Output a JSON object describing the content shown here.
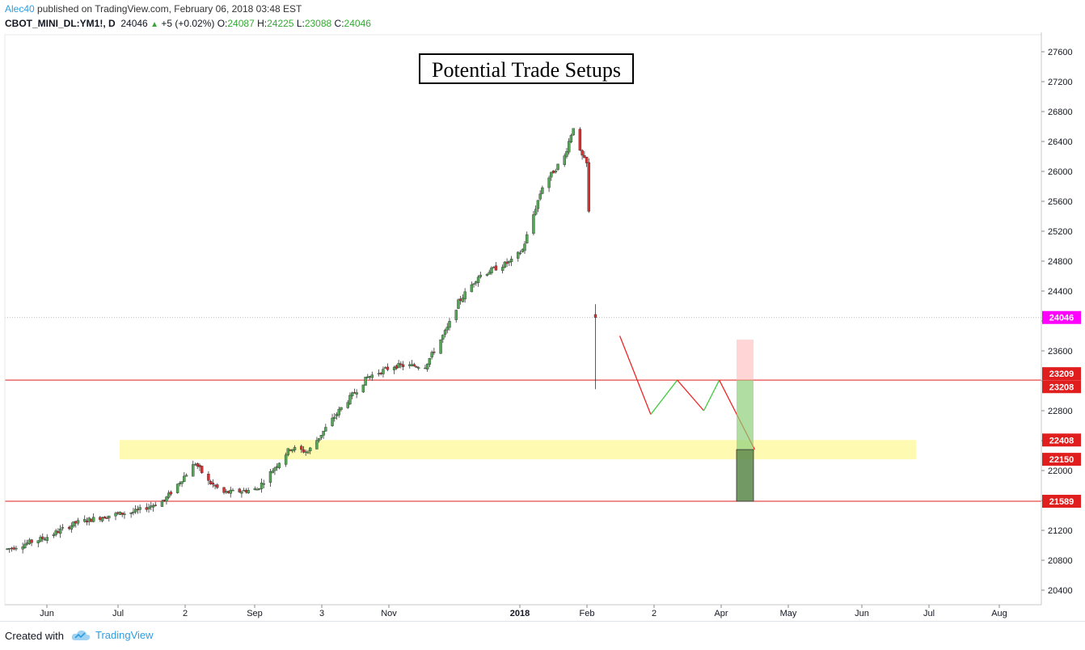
{
  "header": {
    "author": "Alec40",
    "published": "published on TradingView.com, February 06, 2018 03:48 EST",
    "symbol": "CBOT_MINI_DL:YM1!, D",
    "last": "24046",
    "change": "+5 (+0.02%)",
    "o_label": "O:",
    "o": "24087",
    "h_label": "H:",
    "h": "24225",
    "l_label": "L:",
    "l": "23088",
    "c_label": "C:",
    "c": "24046"
  },
  "footer": {
    "created_with": "Created with",
    "brand": "TradingView",
    "logo_icon": "tradingview-cloud-icon"
  },
  "colors": {
    "up": "#53a653",
    "down": "#d83030",
    "support": "#e01e1e",
    "zone": "#fffaa8",
    "projection_down": "#ef2525",
    "projection_up": "#3fcb3f",
    "price_tag": "#ff00ff"
  },
  "chart_data": {
    "type": "candlestick",
    "title": "Potential Trade Setups",
    "timeframe": "D",
    "y_ticks": [
      20400,
      20800,
      21200,
      21600,
      22000,
      22400,
      22800,
      23200,
      23600,
      24000,
      24400,
      24800,
      25200,
      25600,
      26000,
      26400,
      26800,
      27200,
      27600
    ],
    "y_tick_labels": [
      "20400",
      "20800",
      "21200",
      "",
      "22000",
      "",
      "22800",
      "",
      "23600",
      "",
      "24400",
      "24800",
      "25200",
      "25600",
      "26000",
      "26400",
      "26800",
      "27200",
      "27600"
    ],
    "ylim": [
      20250,
      27700
    ],
    "x_ticks": [
      "Jun",
      "Jul",
      "2",
      "Sep",
      "3",
      "Nov",
      "2018",
      "Feb",
      "2",
      "Apr",
      "May",
      "Jun",
      "Jul",
      "Aug"
    ],
    "price_labels": [
      {
        "value": 24046,
        "text": "24046",
        "kind": "last"
      },
      {
        "value": 23209,
        "text": "23209",
        "kind": "level"
      },
      {
        "value": 23208,
        "text": "23208",
        "kind": "level"
      },
      {
        "value": 22408,
        "text": "22408",
        "kind": "level"
      },
      {
        "value": 22150,
        "text": "22150",
        "kind": "level"
      },
      {
        "value": 21589,
        "text": "21589",
        "kind": "level"
      }
    ],
    "horizontal_lines": [
      23209,
      21589
    ],
    "zone": {
      "top": 22408,
      "bottom": 22150
    },
    "path_anchors": [
      {
        "d": "2017-05-15",
        "v": 20950
      },
      {
        "d": "2017-06-01",
        "v": 21100
      },
      {
        "d": "2017-06-15",
        "v": 21300
      },
      {
        "d": "2017-06-30",
        "v": 21400
      },
      {
        "d": "2017-07-12",
        "v": 21450
      },
      {
        "d": "2017-07-25",
        "v": 21600
      },
      {
        "d": "2017-08-08",
        "v": 22100
      },
      {
        "d": "2017-08-14",
        "v": 21850
      },
      {
        "d": "2017-08-21",
        "v": 21700
      },
      {
        "d": "2017-09-05",
        "v": 21750
      },
      {
        "d": "2017-09-20",
        "v": 22300
      },
      {
        "d": "2017-09-28",
        "v": 22250
      },
      {
        "d": "2017-10-12",
        "v": 22800
      },
      {
        "d": "2017-10-25",
        "v": 23250
      },
      {
        "d": "2017-11-06",
        "v": 23400
      },
      {
        "d": "2017-11-20",
        "v": 23400
      },
      {
        "d": "2017-11-30",
        "v": 23900
      },
      {
        "d": "2017-12-05",
        "v": 24250
      },
      {
        "d": "2017-12-14",
        "v": 24600
      },
      {
        "d": "2017-12-29",
        "v": 24800
      },
      {
        "d": "2018-01-03",
        "v": 24950
      },
      {
        "d": "2018-01-12",
        "v": 25800
      },
      {
        "d": "2018-01-22",
        "v": 26200
      },
      {
        "d": "2018-01-26",
        "v": 26600
      },
      {
        "d": "2018-01-29",
        "v": 26250
      },
      {
        "d": "2018-01-31",
        "v": 26150
      },
      {
        "d": "2018-02-01",
        "v": 26100
      },
      {
        "d": "2018-02-02",
        "v": 25450
      },
      {
        "d": "2018-02-05",
        "v": 24050
      }
    ],
    "last_candle": {
      "d": "2018-02-05",
      "o": 24087,
      "h": 24225,
      "l": 23088,
      "c": 24046
    },
    "projection": [
      {
        "d": "2018-02-16",
        "v": 23800,
        "color": "down"
      },
      {
        "d": "2018-03-02",
        "v": 22750,
        "color": "up"
      },
      {
        "d": "2018-03-14",
        "v": 23209,
        "color": "down"
      },
      {
        "d": "2018-03-26",
        "v": 22800,
        "color": "up"
      },
      {
        "d": "2018-04-02",
        "v": 23209,
        "color": "down"
      },
      {
        "d": "2018-04-18",
        "v": 22280,
        "color": "down"
      }
    ],
    "position_box": {
      "entry": 23209,
      "target": 23750,
      "stop": 21589,
      "mid": 22280
    },
    "grid": false,
    "legend": "none"
  }
}
